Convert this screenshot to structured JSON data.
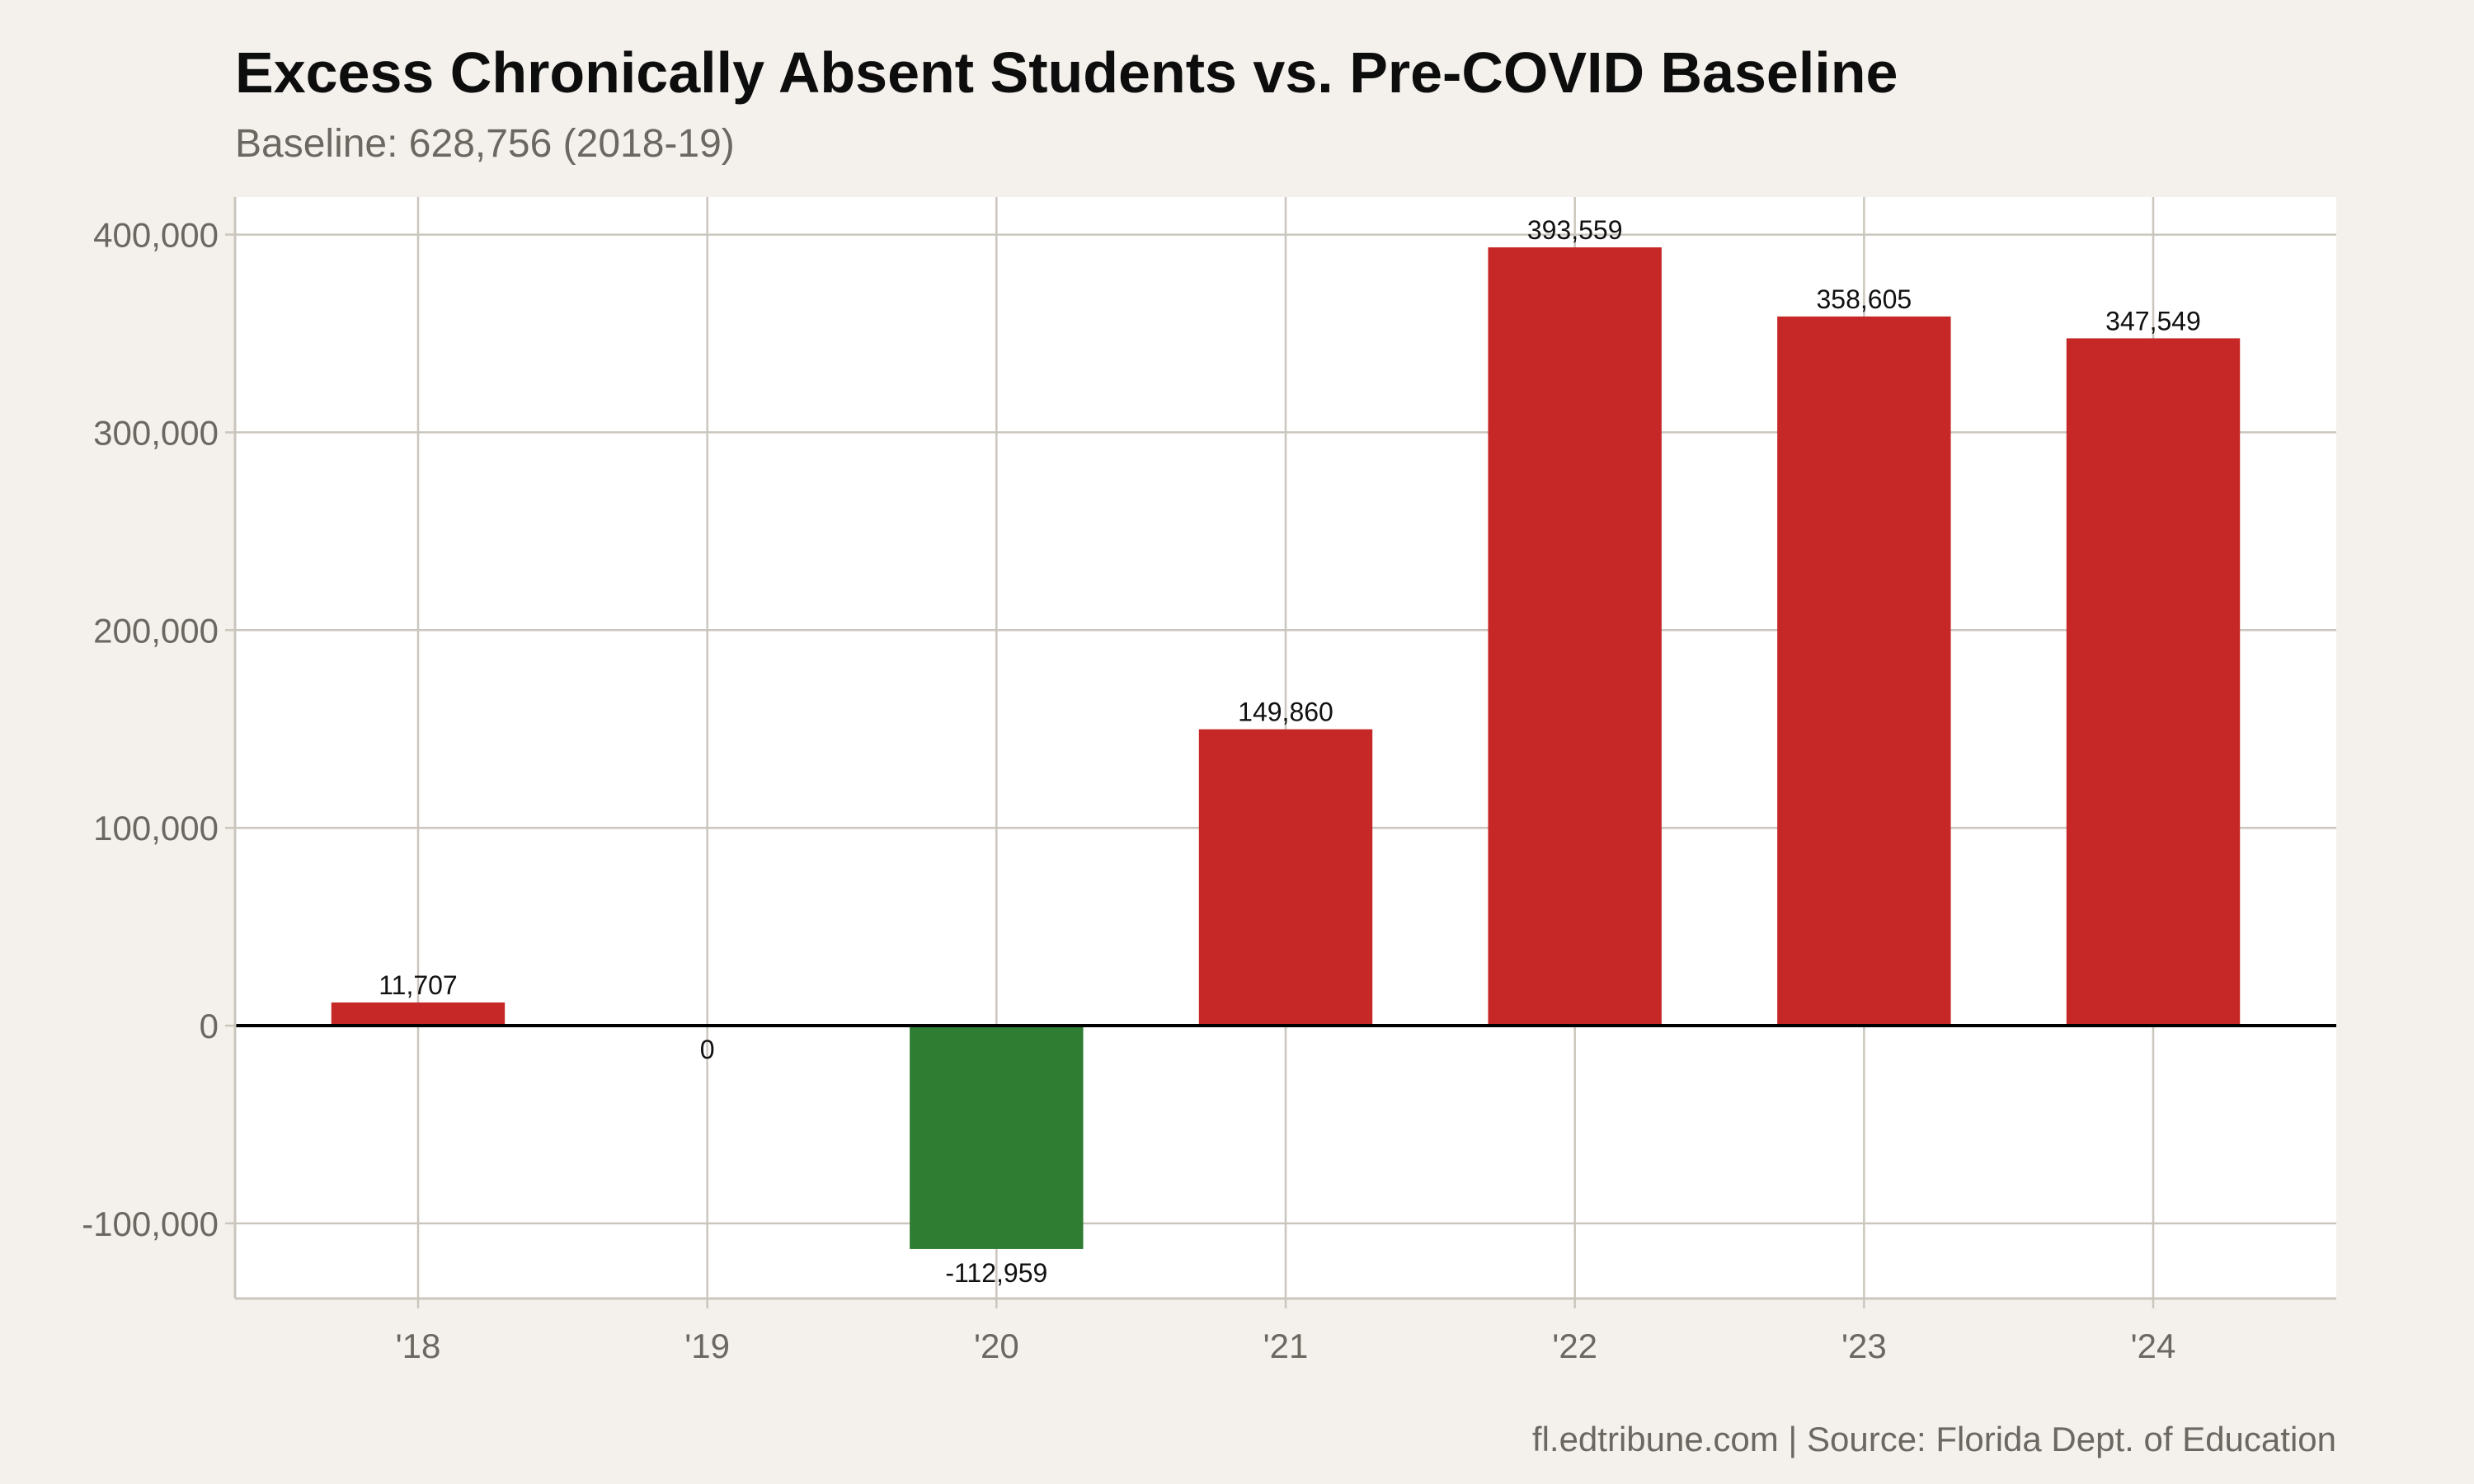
{
  "chart_data": {
    "type": "bar",
    "title": "Excess Chronically Absent Students vs. Pre-COVID Baseline",
    "subtitle": "Baseline: 628,756 (2018-19)",
    "caption": "fl.edtribune.com | Source: Florida Dept. of Education",
    "xlabel": "",
    "ylabel": "",
    "categories": [
      "'18",
      "'19",
      "'20",
      "'21",
      "'22",
      "'23",
      "'24"
    ],
    "values": [
      11707,
      0,
      -112959,
      149860,
      393559,
      358605,
      347549
    ],
    "data_labels": [
      "11,707",
      "0",
      "-112,959",
      "149,860",
      "393,559",
      "358,605",
      "347,549"
    ],
    "ylim": [
      -138000,
      419000
    ],
    "yticks": [
      -100000,
      0,
      100000,
      200000,
      300000,
      400000
    ],
    "ytick_labels": [
      "-100,000",
      "0",
      "100,000",
      "200,000",
      "300,000",
      "400,000"
    ],
    "grid": true,
    "colors": {
      "positive": "#c62828",
      "negative": "#2e7d32",
      "background": "#f4f1ec",
      "panel": "#ffffff",
      "grid": "#cbc6bd",
      "zero_line": "#000000"
    }
  }
}
